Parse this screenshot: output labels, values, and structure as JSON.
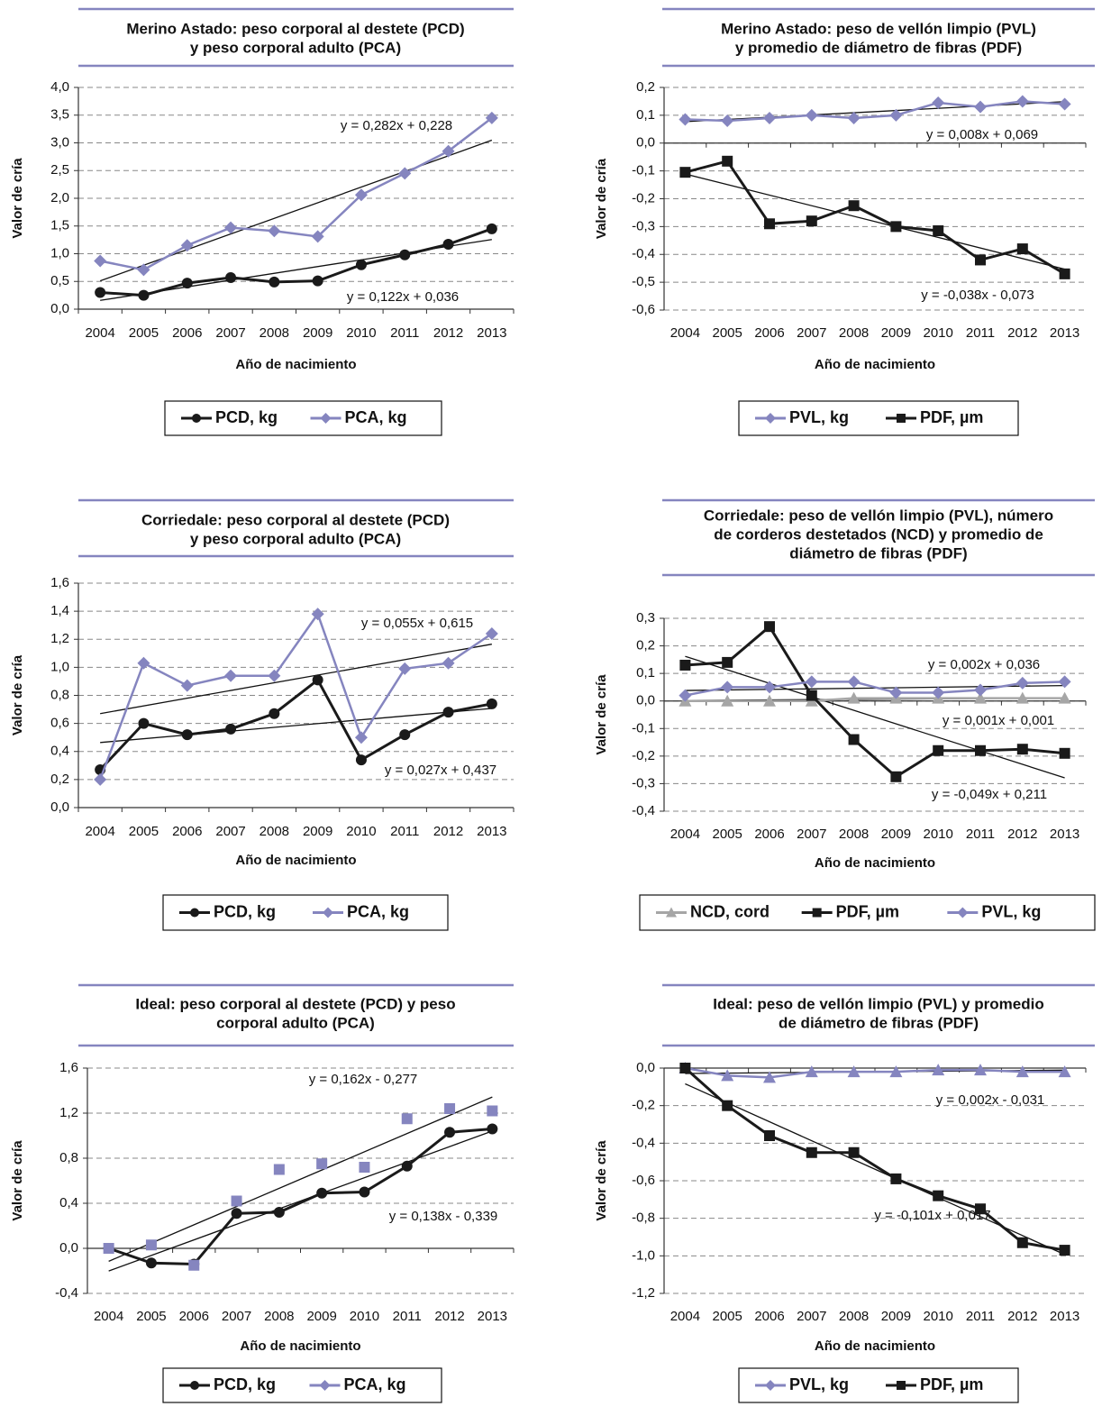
{
  "chart_data": [
    {
      "type": "line",
      "title": [
        "Merino Astado: peso corporal al destete (PCD)",
        "y peso corporal adulto (PCA)"
      ],
      "x_label": "Año de nacimiento",
      "y_label": "Valor de cría",
      "categories": [
        "2004",
        "2005",
        "2006",
        "2007",
        "2008",
        "2009",
        "2010",
        "2011",
        "2012",
        "2013"
      ],
      "ylim": [
        0,
        4
      ],
      "grid": true,
      "yticks": [
        {
          "value": 0,
          "label": "0,0"
        },
        {
          "value": 0.5,
          "label": "0,5"
        },
        {
          "value": 1,
          "label": "1,0"
        },
        {
          "value": 1.5,
          "label": "1,5"
        },
        {
          "value": 2,
          "label": "2,0"
        },
        {
          "value": 2.5,
          "label": "2,5"
        },
        {
          "value": 3,
          "label": "3,0"
        },
        {
          "value": 3.5,
          "label": "3,5"
        },
        {
          "value": 4,
          "label": "4,0"
        }
      ],
      "series": [
        {
          "name": "PCD, kg",
          "color": "#1a1a1a",
          "marker": "circle",
          "line": true,
          "values": [
            0.3,
            0.25,
            0.47,
            0.57,
            0.49,
            0.51,
            0.8,
            0.98,
            1.17,
            1.45
          ],
          "trend": {
            "label": "y = 0,122x + 0,036",
            "slope": 0.122,
            "intercept": 0.036
          }
        },
        {
          "name": "PCA, kg",
          "color": "#8585bf",
          "marker": "diamond",
          "line": true,
          "values": [
            0.87,
            0.71,
            1.15,
            1.47,
            1.41,
            1.31,
            2.06,
            2.45,
            2.85,
            3.45
          ],
          "trend": {
            "label": "y = 0,282x + 0,228",
            "slope": 0.282,
            "intercept": 0.228
          }
        }
      ]
    },
    {
      "type": "line",
      "title": [
        "Merino Astado: peso de vellón limpio (PVL)",
        "y promedio de diámetro de fibras (PDF)"
      ],
      "x_label": "Año de nacimiento",
      "y_label": "Valor de cría",
      "categories": [
        "2004",
        "2005",
        "2006",
        "2007",
        "2008",
        "2009",
        "2010",
        "2011",
        "2012",
        "2013"
      ],
      "ylim": [
        -0.6,
        0.2
      ],
      "grid": true,
      "yticks": [
        {
          "value": -0.6,
          "label": "-0,6"
        },
        {
          "value": -0.5,
          "label": "-0,5"
        },
        {
          "value": -0.4,
          "label": "-0,4"
        },
        {
          "value": -0.3,
          "label": "-0,3"
        },
        {
          "value": -0.2,
          "label": "-0,2"
        },
        {
          "value": -0.1,
          "label": "-0,1"
        },
        {
          "value": 0,
          "label": "0,0"
        },
        {
          "value": 0.1,
          "label": "0,1"
        },
        {
          "value": 0.2,
          "label": "0,2"
        }
      ],
      "series": [
        {
          "name": "PVL, kg",
          "color": "#8585bf",
          "marker": "diamond",
          "line": true,
          "values": [
            0.085,
            0.08,
            0.09,
            0.1,
            0.09,
            0.1,
            0.145,
            0.13,
            0.15,
            0.14
          ],
          "trend": {
            "label": "y = 0,008x + 0,069",
            "slope": 0.008,
            "intercept": 0.069
          }
        },
        {
          "name": "PDF, µm",
          "color": "#1a1a1a",
          "marker": "square",
          "line": true,
          "values": [
            -0.105,
            -0.065,
            -0.29,
            -0.28,
            -0.225,
            -0.3,
            -0.315,
            -0.42,
            -0.38,
            -0.47
          ],
          "trend": {
            "label": "y = -0,038x - 0,073",
            "slope": -0.038,
            "intercept": -0.073
          }
        }
      ]
    },
    {
      "type": "line",
      "title": [
        "Corriedale: peso corporal al destete (PCD)",
        "y peso corporal adulto (PCA)"
      ],
      "x_label": "Año de nacimiento",
      "y_label": "Valor de cría",
      "categories": [
        "2004",
        "2005",
        "2006",
        "2007",
        "2008",
        "2009",
        "2010",
        "2011",
        "2012",
        "2013"
      ],
      "ylim": [
        0,
        1.6
      ],
      "grid": true,
      "yticks": [
        {
          "value": 0,
          "label": "0,0"
        },
        {
          "value": 0.2,
          "label": "0,2"
        },
        {
          "value": 0.4,
          "label": "0,4"
        },
        {
          "value": 0.6,
          "label": "0,6"
        },
        {
          "value": 0.8,
          "label": "0,8"
        },
        {
          "value": 1,
          "label": "1,0"
        },
        {
          "value": 1.2,
          "label": "1,2"
        },
        {
          "value": 1.4,
          "label": "1,4"
        },
        {
          "value": 1.6,
          "label": "1,6"
        }
      ],
      "series": [
        {
          "name": "PCD, kg",
          "color": "#1a1a1a",
          "marker": "circle",
          "line": true,
          "values": [
            0.27,
            0.6,
            0.52,
            0.56,
            0.67,
            0.91,
            0.34,
            0.52,
            0.68,
            0.74
          ],
          "trend": {
            "label": "y = 0,027x + 0,437",
            "slope": 0.027,
            "intercept": 0.437
          }
        },
        {
          "name": "PCA, kg",
          "color": "#8585bf",
          "marker": "diamond",
          "line": true,
          "values": [
            0.2,
            1.03,
            0.87,
            0.94,
            0.94,
            1.38,
            0.5,
            0.99,
            1.03,
            1.24
          ],
          "trend": {
            "label": "y = 0,055x + 0,615",
            "slope": 0.055,
            "intercept": 0.615
          }
        }
      ]
    },
    {
      "type": "line",
      "title": [
        "Corriedale: peso de vellón limpio (PVL), número",
        "de corderos destetados (NCD) y promedio de",
        "diámetro de fibras (PDF)"
      ],
      "x_label": "Año de nacimiento",
      "y_label": "Valor de cría",
      "categories": [
        "2004",
        "2005",
        "2006",
        "2007",
        "2008",
        "2009",
        "2010",
        "2011",
        "2012",
        "2013"
      ],
      "ylim": [
        -0.4,
        0.3
      ],
      "grid": true,
      "yticks": [
        {
          "value": -0.4,
          "label": "-0,4"
        },
        {
          "value": -0.3,
          "label": "-0,3"
        },
        {
          "value": -0.2,
          "label": "-0,2"
        },
        {
          "value": -0.1,
          "label": "-0,1"
        },
        {
          "value": 0,
          "label": "0,0"
        },
        {
          "value": 0.1,
          "label": "0,1"
        },
        {
          "value": 0.2,
          "label": "0,2"
        },
        {
          "value": 0.3,
          "label": "0,3"
        }
      ],
      "series": [
        {
          "name": "NCD, cord",
          "color": "#a6a6a6",
          "marker": "triangle",
          "line": true,
          "values": [
            0.0,
            0.0,
            0.0,
            0.0,
            0.01,
            0.01,
            0.01,
            0.01,
            0.01,
            0.01
          ],
          "trend": {
            "label": "y = 0,001x + 0,001",
            "slope": 0.001,
            "intercept": 0.001
          }
        },
        {
          "name": "PDF, µm",
          "color": "#1a1a1a",
          "marker": "square",
          "line": true,
          "values": [
            0.13,
            0.14,
            0.27,
            0.02,
            -0.14,
            -0.275,
            -0.18,
            -0.18,
            -0.175,
            -0.19
          ],
          "trend": {
            "label": "y = -0,049x + 0,211",
            "slope": -0.049,
            "intercept": 0.211
          }
        },
        {
          "name": "PVL, kg",
          "color": "#8585bf",
          "marker": "diamond",
          "line": true,
          "values": [
            0.02,
            0.05,
            0.05,
            0.07,
            0.07,
            0.03,
            0.03,
            0.04,
            0.065,
            0.07
          ],
          "trend": {
            "label": "y = 0,002x + 0,036",
            "slope": 0.002,
            "intercept": 0.036
          }
        }
      ]
    },
    {
      "type": "line",
      "title": [
        "Ideal: peso corporal al destete (PCD) y peso",
        "corporal adulto (PCA)"
      ],
      "x_label": "Año de nacimiento",
      "y_label": "Valor de cría",
      "categories": [
        "2004",
        "2005",
        "2006",
        "2007",
        "2008",
        "2009",
        "2010",
        "2011",
        "2012",
        "2013"
      ],
      "ylim": [
        -0.4,
        1.6
      ],
      "grid": true,
      "yticks": [
        {
          "value": -0.4,
          "label": "-0,4"
        },
        {
          "value": 0,
          "label": "0,0"
        },
        {
          "value": 0.4,
          "label": "0,4"
        },
        {
          "value": 0.8,
          "label": "0,8"
        },
        {
          "value": 1.2,
          "label": "1,2"
        },
        {
          "value": 1.6,
          "label": "1,6"
        }
      ],
      "series": [
        {
          "name": "PCD, kg",
          "color": "#1a1a1a",
          "marker": "circle",
          "line": true,
          "values": [
            0.0,
            -0.13,
            -0.14,
            0.31,
            0.32,
            0.49,
            0.5,
            0.73,
            1.03,
            1.06
          ],
          "trend": {
            "label": "y = 0,138x - 0,339",
            "slope": 0.138,
            "intercept": -0.339
          }
        },
        {
          "name": "PCA, kg",
          "color": "#8585bf",
          "marker": "square",
          "line": false,
          "values": [
            0.0,
            0.03,
            -0.15,
            0.42,
            0.7,
            0.75,
            0.72,
            1.15,
            1.24,
            1.22
          ],
          "trend": {
            "label": "y = 0,162x - 0,277",
            "slope": 0.162,
            "intercept": -0.277
          }
        }
      ]
    },
    {
      "type": "line",
      "title": [
        "Ideal: peso de vellón limpio (PVL) y promedio",
        "de diámetro de fibras (PDF)"
      ],
      "x_label": "Año de nacimiento",
      "y_label": "Valor de cría",
      "categories": [
        "2004",
        "2005",
        "2006",
        "2007",
        "2008",
        "2009",
        "2010",
        "2011",
        "2012",
        "2013"
      ],
      "ylim": [
        -1.2,
        0
      ],
      "grid": true,
      "yticks": [
        {
          "value": -1.2,
          "label": "-1,2"
        },
        {
          "value": -1,
          "label": "-1,0"
        },
        {
          "value": -0.8,
          "label": "-0,8"
        },
        {
          "value": -0.6,
          "label": "-0,6"
        },
        {
          "value": -0.4,
          "label": "-0,4"
        },
        {
          "value": -0.2,
          "label": "-0,2"
        },
        {
          "value": 0,
          "label": "0,0"
        }
      ],
      "series": [
        {
          "name": "PVL, kg",
          "color": "#8585bf",
          "marker": "triangle",
          "line": true,
          "values": [
            0.0,
            -0.04,
            -0.05,
            -0.02,
            -0.02,
            -0.02,
            -0.01,
            -0.01,
            -0.02,
            -0.02
          ],
          "trend": {
            "label": "y = 0,002x - 0,031",
            "slope": 0.002,
            "intercept": -0.031
          }
        },
        {
          "name": "PDF, µm",
          "color": "#1a1a1a",
          "marker": "square",
          "line": true,
          "values": [
            0.0,
            -0.2,
            -0.36,
            -0.45,
            -0.45,
            -0.59,
            -0.68,
            -0.75,
            -0.93,
            -0.97
          ],
          "trend": {
            "label": "y = -0,101x + 0,017",
            "slope": -0.101,
            "intercept": 0.017
          }
        }
      ]
    }
  ]
}
